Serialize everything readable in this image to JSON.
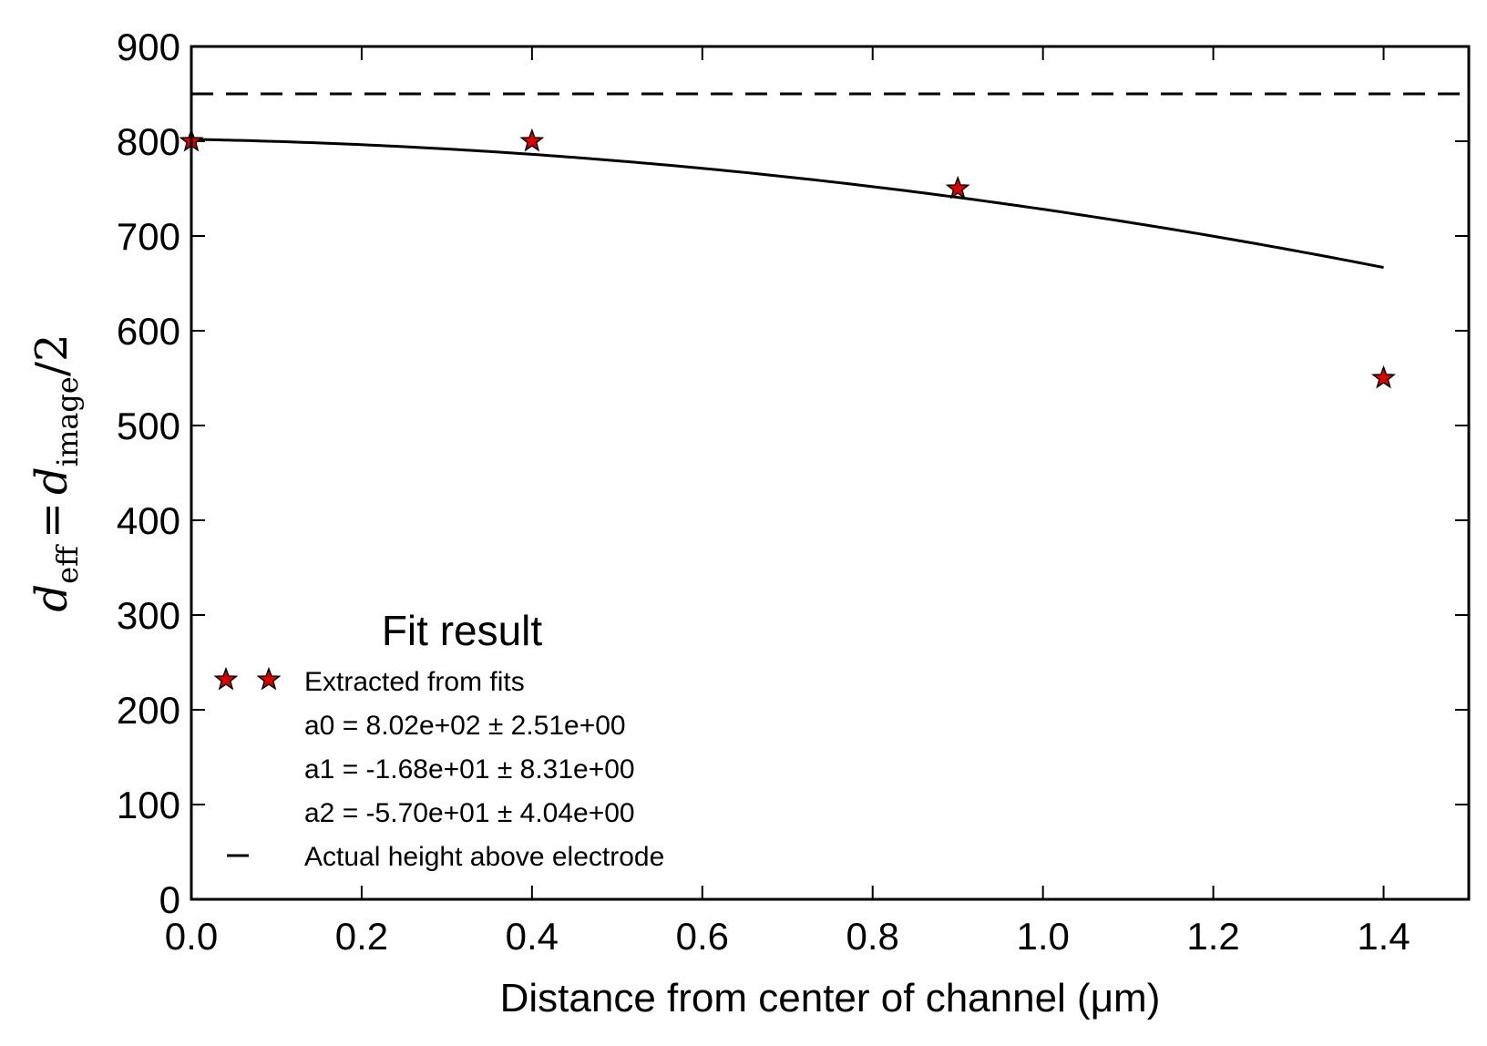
{
  "chart_data": {
    "type": "scatter",
    "xlabel": "Distance from center of channel (μm)",
    "ylabel": {
      "d": "d",
      "eff": "eff",
      "equals": "=",
      "image": "image",
      "div": "/2"
    },
    "xlim": [
      0.0,
      1.5
    ],
    "ylim": [
      0,
      900
    ],
    "x_ticks": [
      "0.0",
      "0.2",
      "0.4",
      "0.6",
      "0.8",
      "1.0",
      "1.2",
      "1.4"
    ],
    "y_ticks": [
      "0",
      "100",
      "200",
      "300",
      "400",
      "500",
      "600",
      "700",
      "800",
      "900"
    ],
    "grid": false,
    "series": [
      {
        "name": "Extracted from fits",
        "marker": "star",
        "color": "#dd0000",
        "x": [
          0.0,
          0.4,
          0.9,
          1.4
        ],
        "y": [
          800,
          800,
          750,
          550
        ]
      }
    ],
    "fit_curve": {
      "model": "a0 + a1*x + a2*x^2",
      "a0": 802,
      "a1": -16.8,
      "a2": -57.0,
      "x_range": [
        0.0,
        1.4
      ],
      "color": "#000000"
    },
    "reference_line": {
      "name": "Actual height above electrode",
      "y": 850,
      "style": "dashed",
      "color": "#000000"
    },
    "legend": {
      "title": "Fit result",
      "placement": "lower-left",
      "entries": [
        "Extracted from fits",
        "a0 = 8.02e+02 ± 2.51e+00",
        "a1 = -1.68e+01 ± 8.31e+00",
        "a2 = -5.70e+01 ± 4.04e+00",
        "Actual height above electrode"
      ]
    }
  }
}
